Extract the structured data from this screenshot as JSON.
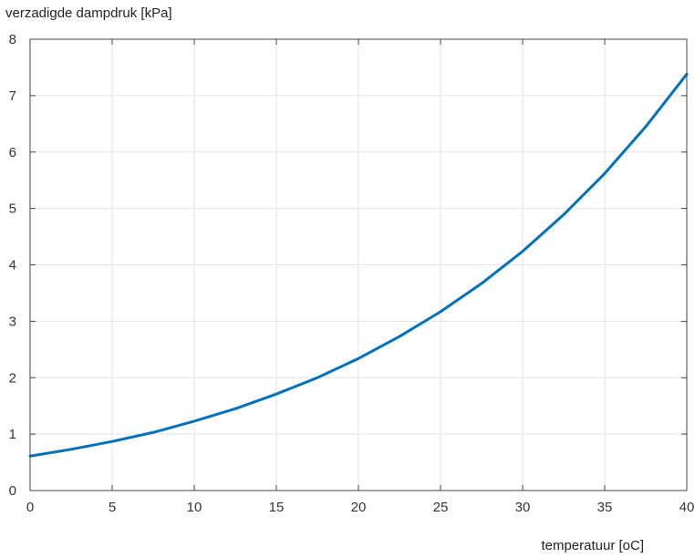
{
  "chart_data": {
    "type": "line",
    "title": "",
    "xlabel": "temperatuur [oC]",
    "ylabel": "verzadigde dampdruk [kPa]",
    "xlim": [
      0,
      40
    ],
    "ylim": [
      0,
      8
    ],
    "x_ticks": [
      0,
      5,
      10,
      15,
      20,
      25,
      30,
      35,
      40
    ],
    "y_ticks": [
      0,
      1,
      2,
      3,
      4,
      5,
      6,
      7,
      8
    ],
    "grid": true,
    "line_color": "#0072bd",
    "series": [
      {
        "x": [
          0,
          2.5,
          5,
          7.5,
          10,
          12.5,
          15,
          17.5,
          20,
          22.5,
          25,
          27.5,
          30,
          32.5,
          35,
          37.5,
          40
        ],
        "y": [
          0.61,
          0.73,
          0.87,
          1.03,
          1.23,
          1.45,
          1.71,
          2.0,
          2.34,
          2.73,
          3.17,
          3.67,
          4.24,
          4.89,
          5.62,
          6.45,
          7.38
        ]
      }
    ]
  }
}
